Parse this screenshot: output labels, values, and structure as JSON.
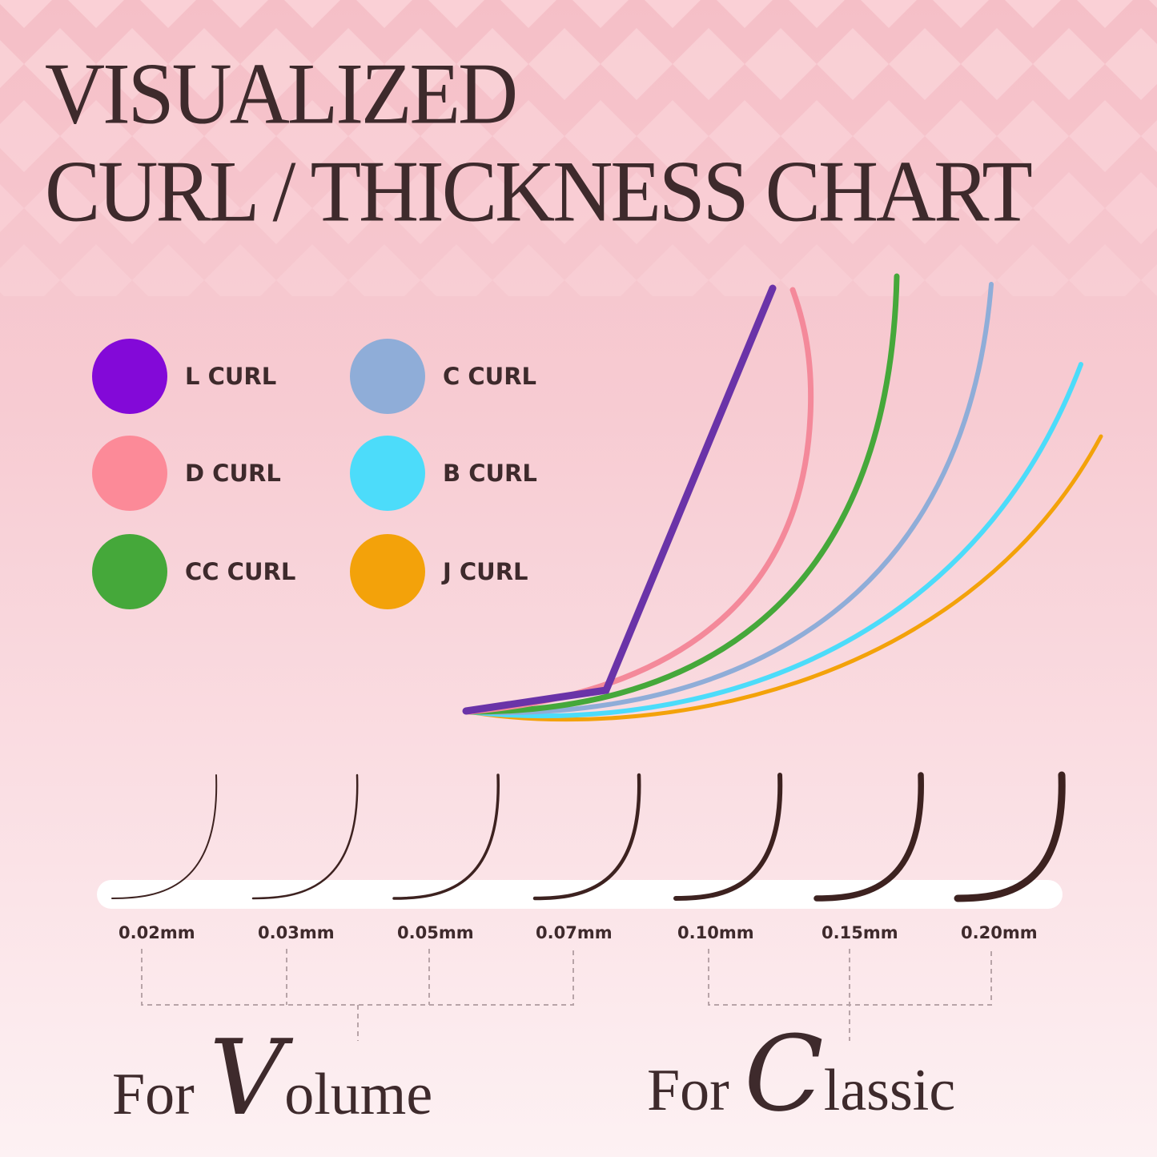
{
  "title": {
    "line1": "VISUALIZED",
    "line2": "CURL / THICKNESS CHART"
  },
  "legend": [
    {
      "label": "L CURL",
      "color": "#8309d8"
    },
    {
      "label": "D CURL",
      "color": "#fc8a98"
    },
    {
      "label": "CC CURL",
      "color": "#45a83a"
    },
    {
      "label": "C CURL",
      "color": "#8fadd8"
    },
    {
      "label": "B CURL",
      "color": "#4cdcfa"
    },
    {
      "label": "J CURL",
      "color": "#f3a20a"
    }
  ],
  "thicknesses": [
    "0.02mm",
    "0.03mm",
    "0.05mm",
    "0.07mm",
    "0.10mm",
    "0.15mm",
    "0.20mm"
  ],
  "groups": {
    "volume": {
      "prefix": "For",
      "initial": "V",
      "rest": "olume"
    },
    "classic": {
      "prefix": "For",
      "initial": "C",
      "rest": "lassic"
    }
  }
}
